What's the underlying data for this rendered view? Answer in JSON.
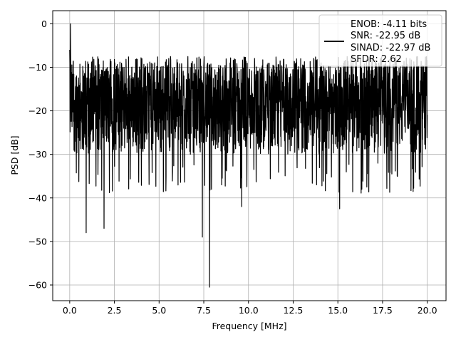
{
  "chart_data": {
    "type": "line",
    "title": "",
    "xlabel": "Frequency [MHz]",
    "ylabel": "PSD [dB]",
    "xlim": [
      -0.95,
      21.05
    ],
    "ylim": [
      -63.6,
      3.0
    ],
    "xticks": [
      0.0,
      2.5,
      5.0,
      7.5,
      10.0,
      12.5,
      15.0,
      17.5,
      20.0
    ],
    "xtick_labels": [
      "0.0",
      "2.5",
      "5.0",
      "7.5",
      "10.0",
      "12.5",
      "15.0",
      "17.5",
      "20.0"
    ],
    "yticks": [
      0,
      -10,
      -20,
      -30,
      -40,
      -50,
      -60
    ],
    "ytick_labels": [
      "0",
      "−10",
      "−20",
      "−30",
      "−40",
      "−50",
      "−60"
    ],
    "grid": true,
    "legend_position": "top-right",
    "series": [
      {
        "color": "#000000",
        "x_range": [
          0.0,
          20.0
        ],
        "peak": {
          "x": 0.04,
          "y": 0.0
        },
        "typical_range": [
          -30,
          -9
        ],
        "deep_nulls": [
          {
            "x": 0.92,
            "y": -48
          },
          {
            "x": 1.92,
            "y": -47
          },
          {
            "x": 7.42,
            "y": -49
          },
          {
            "x": 7.82,
            "y": -60.5
          },
          {
            "x": 9.62,
            "y": -42
          },
          {
            "x": 15.1,
            "y": -42.5
          }
        ],
        "legend_lines": [
          "ENOB: -4.11 bits",
          "SNR: -22.95 dB",
          "SINAD: -22.97 dB",
          "SFDR: 2.62"
        ]
      }
    ]
  }
}
